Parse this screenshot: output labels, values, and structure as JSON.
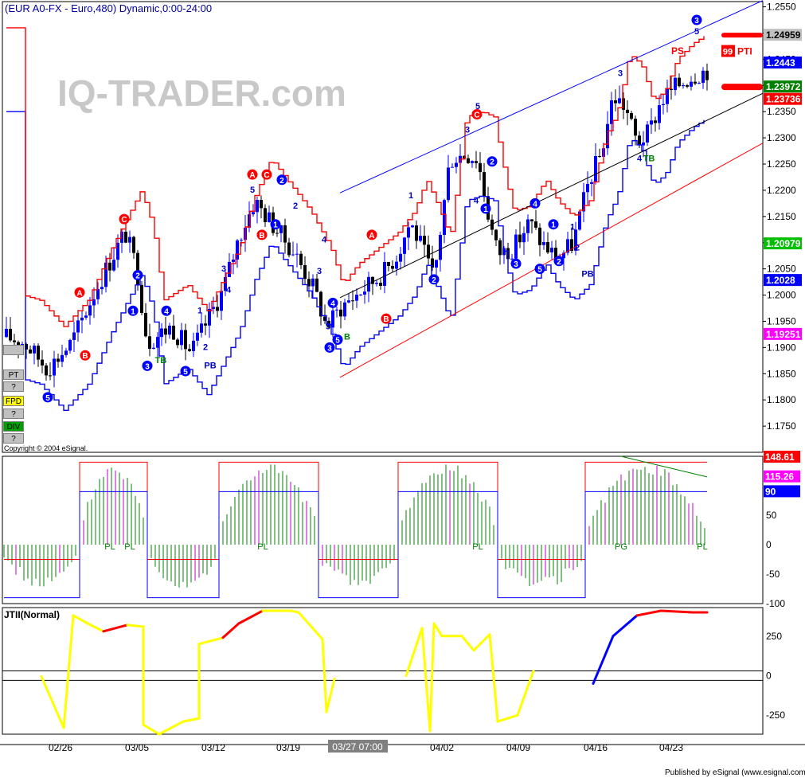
{
  "header": {
    "title": "(EUR A0-FX - Euro,480) Dynamic,0:00-24:00",
    "watermark": "IQ-TRADER.com",
    "copyright": "Copyright © 2004 eSignal.",
    "published": "Published by eSignal (www.esignal.com)"
  },
  "side_buttons": [
    {
      "label": "",
      "color": "#c0c0c0"
    },
    {
      "label": "PT",
      "color": "#c0c0c0"
    },
    {
      "label": "?",
      "color": "#c0c0c0"
    },
    {
      "label": "FPD",
      "color": "#ffff00"
    },
    {
      "label": "?",
      "color": "#c0c0c0"
    },
    {
      "label": "DIV",
      "color": "#00a000"
    },
    {
      "label": "?",
      "color": "#c0c0c0"
    }
  ],
  "x_axis": {
    "ticks": [
      "02/26",
      "03/05",
      "03/12",
      "03/19",
      "04/02",
      "04/09",
      "04/16",
      "04/23"
    ],
    "cursor_label": "03/27 07:00"
  },
  "chart_data": [
    {
      "type": "candlestick",
      "panel": "price",
      "title": "(EUR A0-FX - Euro,480) Dynamic,0:00-24:00",
      "ylim": [
        1.17,
        1.256
      ],
      "y_ticks": [
        "1.2550",
        "1.2500",
        "1.2450",
        "1.2400",
        "1.2350",
        "1.2300",
        "1.2250",
        "1.2200",
        "1.2150",
        "1.2100",
        "1.2050",
        "1.2000",
        "1.1950",
        "1.1900",
        "1.1850",
        "1.1800",
        "1.1750"
      ],
      "price_flags": [
        {
          "label": "1.24959",
          "value": 1.24959,
          "bg": "#c0c0c0",
          "fg": "#000000"
        },
        {
          "label": "1.2443",
          "value": 1.2443,
          "bg": "#0000ff",
          "fg": "#ffffff"
        },
        {
          "label": "1.23972",
          "value": 1.23972,
          "bg": "#008000",
          "fg": "#ffffff"
        },
        {
          "label": "1.23736",
          "value": 1.23736,
          "bg": "#ff0000",
          "fg": "#ffffff"
        },
        {
          "label": "1.20979",
          "value": 1.20979,
          "bg": "#00c000",
          "fg": "#ffffff"
        },
        {
          "label": "1.2028",
          "value": 1.2028,
          "bg": "#0000ff",
          "fg": "#ffffff"
        },
        {
          "label": "1.19251",
          "value": 1.19251,
          "bg": "#ff00ff",
          "fg": "#ffffff"
        }
      ],
      "annotations": {
        "PS": "PS",
        "PTI_count": "99",
        "PTI": "PTI"
      }
    },
    {
      "type": "bar",
      "panel": "oscillator",
      "ylim": [
        -100,
        150
      ],
      "y_ticks": [
        "50",
        "0",
        "-50",
        "-100"
      ],
      "value_flags": [
        {
          "label": "148.61",
          "bg": "#ff0000",
          "fg": "#ffffff"
        },
        {
          "label": "115.26",
          "bg": "#ff00ff",
          "fg": "#ffffff"
        },
        {
          "label": "90",
          "bg": "#0000ff",
          "fg": "#ffffff"
        }
      ],
      "labels": [
        "PL",
        "PL",
        "PL",
        "PL",
        "PG",
        "PL"
      ]
    },
    {
      "type": "line",
      "panel": "jtii",
      "title": "JTII(Normal)",
      "ylim": [
        -370,
        430
      ],
      "y_ticks": [
        "250",
        "0",
        "-250"
      ],
      "reference_lines": [
        30,
        -30
      ]
    }
  ]
}
